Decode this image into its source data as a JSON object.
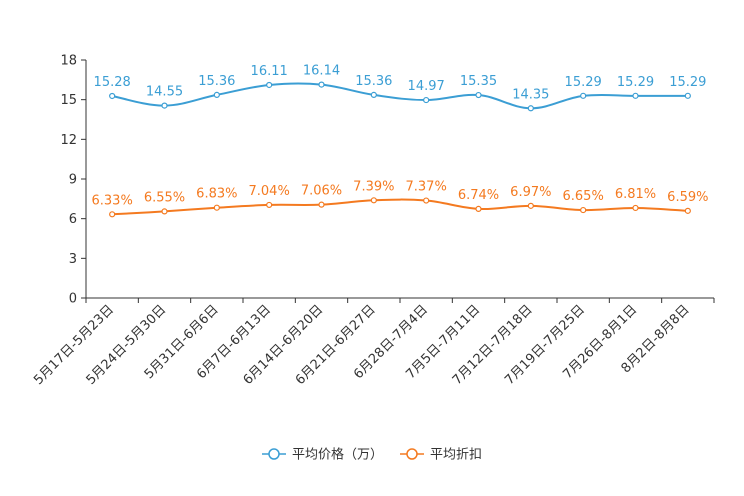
{
  "chart_data": {
    "type": "line",
    "title": "",
    "xlabel": "",
    "ylabel": "",
    "ylim": [
      0,
      18
    ],
    "yticks": [
      0,
      3,
      6,
      9,
      12,
      15,
      18
    ],
    "grid": false,
    "legend_position": "bottom",
    "categories": [
      "5月17日-5月23日",
      "5月24日-5月30日",
      "5月31日-6月6日",
      "6月7日-6月13日",
      "6月14日-6月20日",
      "6月21日-6月27日",
      "6月28日-7月4日",
      "7月5日-7月11日",
      "7月12日-7月18日",
      "7月19日-7月25日",
      "7月26日-8月1日",
      "8月2日-8月8日"
    ],
    "series": [
      {
        "name": "平均价格（万）",
        "color": "#3b9ed4",
        "values": [
          15.28,
          14.55,
          15.36,
          16.11,
          16.14,
          15.36,
          14.97,
          15.35,
          14.35,
          15.29,
          15.29,
          15.29
        ],
        "labels": [
          "15.28",
          "14.55",
          "15.36",
          "16.11",
          "16.14",
          "15.36",
          "14.97",
          "15.35",
          "14.35",
          "15.29",
          "15.29",
          "15.29"
        ]
      },
      {
        "name": "平均折扣",
        "color": "#f47a20",
        "values": [
          6.33,
          6.55,
          6.83,
          7.04,
          7.06,
          7.39,
          7.37,
          6.74,
          6.97,
          6.65,
          6.81,
          6.59
        ],
        "labels": [
          "6.33%",
          "6.55%",
          "6.83%",
          "7.04%",
          "7.06%",
          "7.39%",
          "7.37%",
          "6.74%",
          "6.97%",
          "6.65%",
          "6.81%",
          "6.59%"
        ]
      }
    ]
  }
}
